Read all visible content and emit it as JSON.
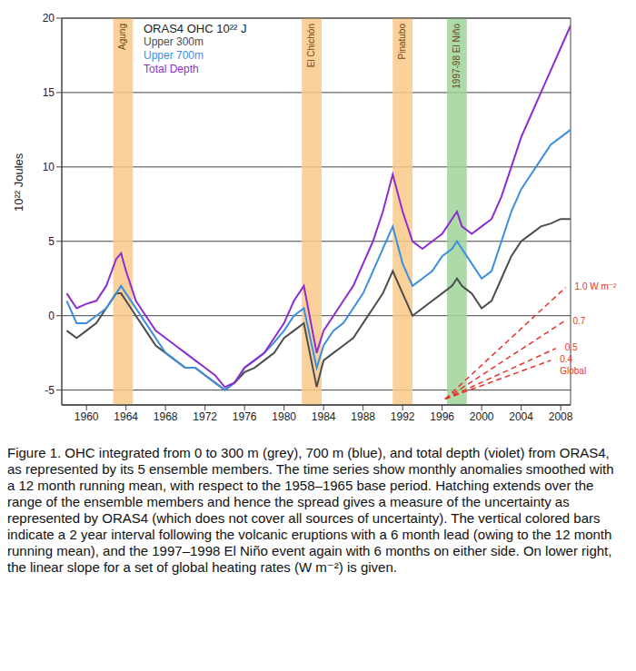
{
  "chart_data": {
    "type": "line",
    "legend_title": "ORAS4 OHC 10²² J",
    "ylabel": "10²² Joules",
    "legend": "upper left",
    "grid": true,
    "x": [
      1958,
      1959,
      1960,
      1961,
      1962,
      1963,
      1963.5,
      1964,
      1965,
      1966,
      1967,
      1968,
      1969,
      1970,
      1971,
      1972,
      1973,
      1974,
      1975,
      1976,
      1977,
      1978,
      1979,
      1980,
      1981,
      1982,
      1983.3,
      1984,
      1985,
      1986,
      1987,
      1988,
      1989,
      1990,
      1991,
      1992,
      1993,
      1994,
      1995,
      1996,
      1997,
      1997.5,
      1998,
      1999,
      2000,
      2001,
      2002,
      2003,
      2004,
      2005,
      2006,
      2007,
      2008,
      2009
    ],
    "xlim": [
      1957.5,
      2009
    ],
    "xticks": [
      1960,
      1964,
      1968,
      1972,
      1976,
      1980,
      1984,
      1988,
      1992,
      1996,
      2000,
      2004,
      2008
    ],
    "ylim": [
      -6,
      20
    ],
    "yticks": [
      -5,
      0,
      5,
      10,
      15,
      20
    ],
    "series": [
      {
        "name": "Upper 300m",
        "color": "#4d4d4d",
        "values": [
          -1,
          -1.5,
          -1,
          -0.5,
          0.5,
          1.5,
          1.5,
          1,
          0,
          -1,
          -2,
          -2.5,
          -3,
          -3.5,
          -3.5,
          -4,
          -4.5,
          -5,
          -4.5,
          -3.8,
          -3.5,
          -3,
          -2.5,
          -1.5,
          -1,
          -0.5,
          -4.8,
          -3,
          -2.5,
          -2,
          -1.5,
          -0.5,
          0.5,
          1.5,
          3,
          1.5,
          0,
          0.5,
          1,
          1.5,
          2,
          2.5,
          2,
          1.5,
          0.5,
          1,
          2.5,
          4,
          5,
          5.5,
          6,
          6.2,
          6.5,
          6.5
        ]
      },
      {
        "name": "Upper 700m",
        "color": "#3b8fe0",
        "values": [
          1,
          -0.5,
          -0.5,
          0,
          0.5,
          1.5,
          2,
          1.5,
          0.5,
          -0.5,
          -1.5,
          -2.5,
          -3,
          -3.5,
          -3.5,
          -4,
          -4.5,
          -5,
          -4.5,
          -3.5,
          -3,
          -2.5,
          -1.8,
          -1,
          0,
          0.5,
          -3.5,
          -2,
          -1,
          -0.5,
          0.5,
          1.5,
          3,
          4.5,
          6,
          3.5,
          2,
          2.5,
          3,
          4,
          4.5,
          5,
          4.5,
          3.5,
          2.5,
          3,
          5,
          7,
          8.5,
          9.5,
          10.5,
          11.5,
          12,
          12.5
        ]
      },
      {
        "name": "Total Depth",
        "color": "#8e2ccf",
        "values": [
          1.5,
          0.5,
          0.8,
          1,
          2,
          3.8,
          4.2,
          3,
          1,
          0,
          -1,
          -1.5,
          -2,
          -2.5,
          -3,
          -3.5,
          -4,
          -4.8,
          -4.5,
          -3.5,
          -3,
          -2.5,
          -1.5,
          -0.5,
          1,
          2,
          -2.5,
          -1,
          0,
          1,
          2,
          3.5,
          5,
          7,
          9.5,
          7,
          5,
          4.5,
          5,
          5.5,
          6.5,
          7,
          6,
          5.5,
          6,
          6.5,
          8,
          10,
          12,
          13.5,
          15,
          16.5,
          18,
          19.5
        ]
      }
    ],
    "shaded_periods": [
      {
        "label": "Agung",
        "start": 1962.7,
        "end": 1964.7,
        "color": "#f9c98a"
      },
      {
        "label": "El Chichón",
        "start": 1981.8,
        "end": 1983.8,
        "color": "#f9c98a"
      },
      {
        "label": "Pinatubo",
        "start": 1991,
        "end": 1993,
        "color": "#f9c98a"
      },
      {
        "label": "1997-98 El Niño",
        "start": 1996.5,
        "end": 1998.5,
        "color": "#9fd49a"
      }
    ],
    "heating_rates": {
      "label": "Global",
      "color": "#e8322a",
      "line_style": "dashed",
      "lines": [
        {
          "label": "0.4",
          "x": [
            1996.3,
            2007
          ],
          "values": [
            -5.6,
            -3
          ]
        },
        {
          "label": "0.5",
          "x": [
            1996.3,
            2007.5
          ],
          "values": [
            -5.6,
            -2.2
          ]
        },
        {
          "label": "0.7",
          "x": [
            1996.3,
            2008.3
          ],
          "values": [
            -5.6,
            -0.4
          ]
        },
        {
          "label": "1.0 W m⁻²",
          "x": [
            1996.3,
            2008.5
          ],
          "values": [
            -5.6,
            1.9
          ]
        }
      ]
    },
    "caption": "Figure 1. OHC integrated from 0 to 300 m (grey), 700 m (blue), and total depth (violet) from ORAS4, as represented by its 5 ensemble members. The time series show monthly anomalies smoothed with a 12 month running mean, with respect to the 1958–1965 base period. Hatching extends over the range of the ensemble members and hence the spread gives a measure of the uncertainty as represented by ORAS4 (which does not cover all sources of uncertainty). The vertical colored bars indicate a 2 year interval following the volcanic eruptions with a 6 month lead (owing to the 12 month running mean), and the 1997–1998 El Niño event again with 6 months on either side. On lower right, the linear slope for a set of global heating rates (W m⁻²) is given."
  }
}
